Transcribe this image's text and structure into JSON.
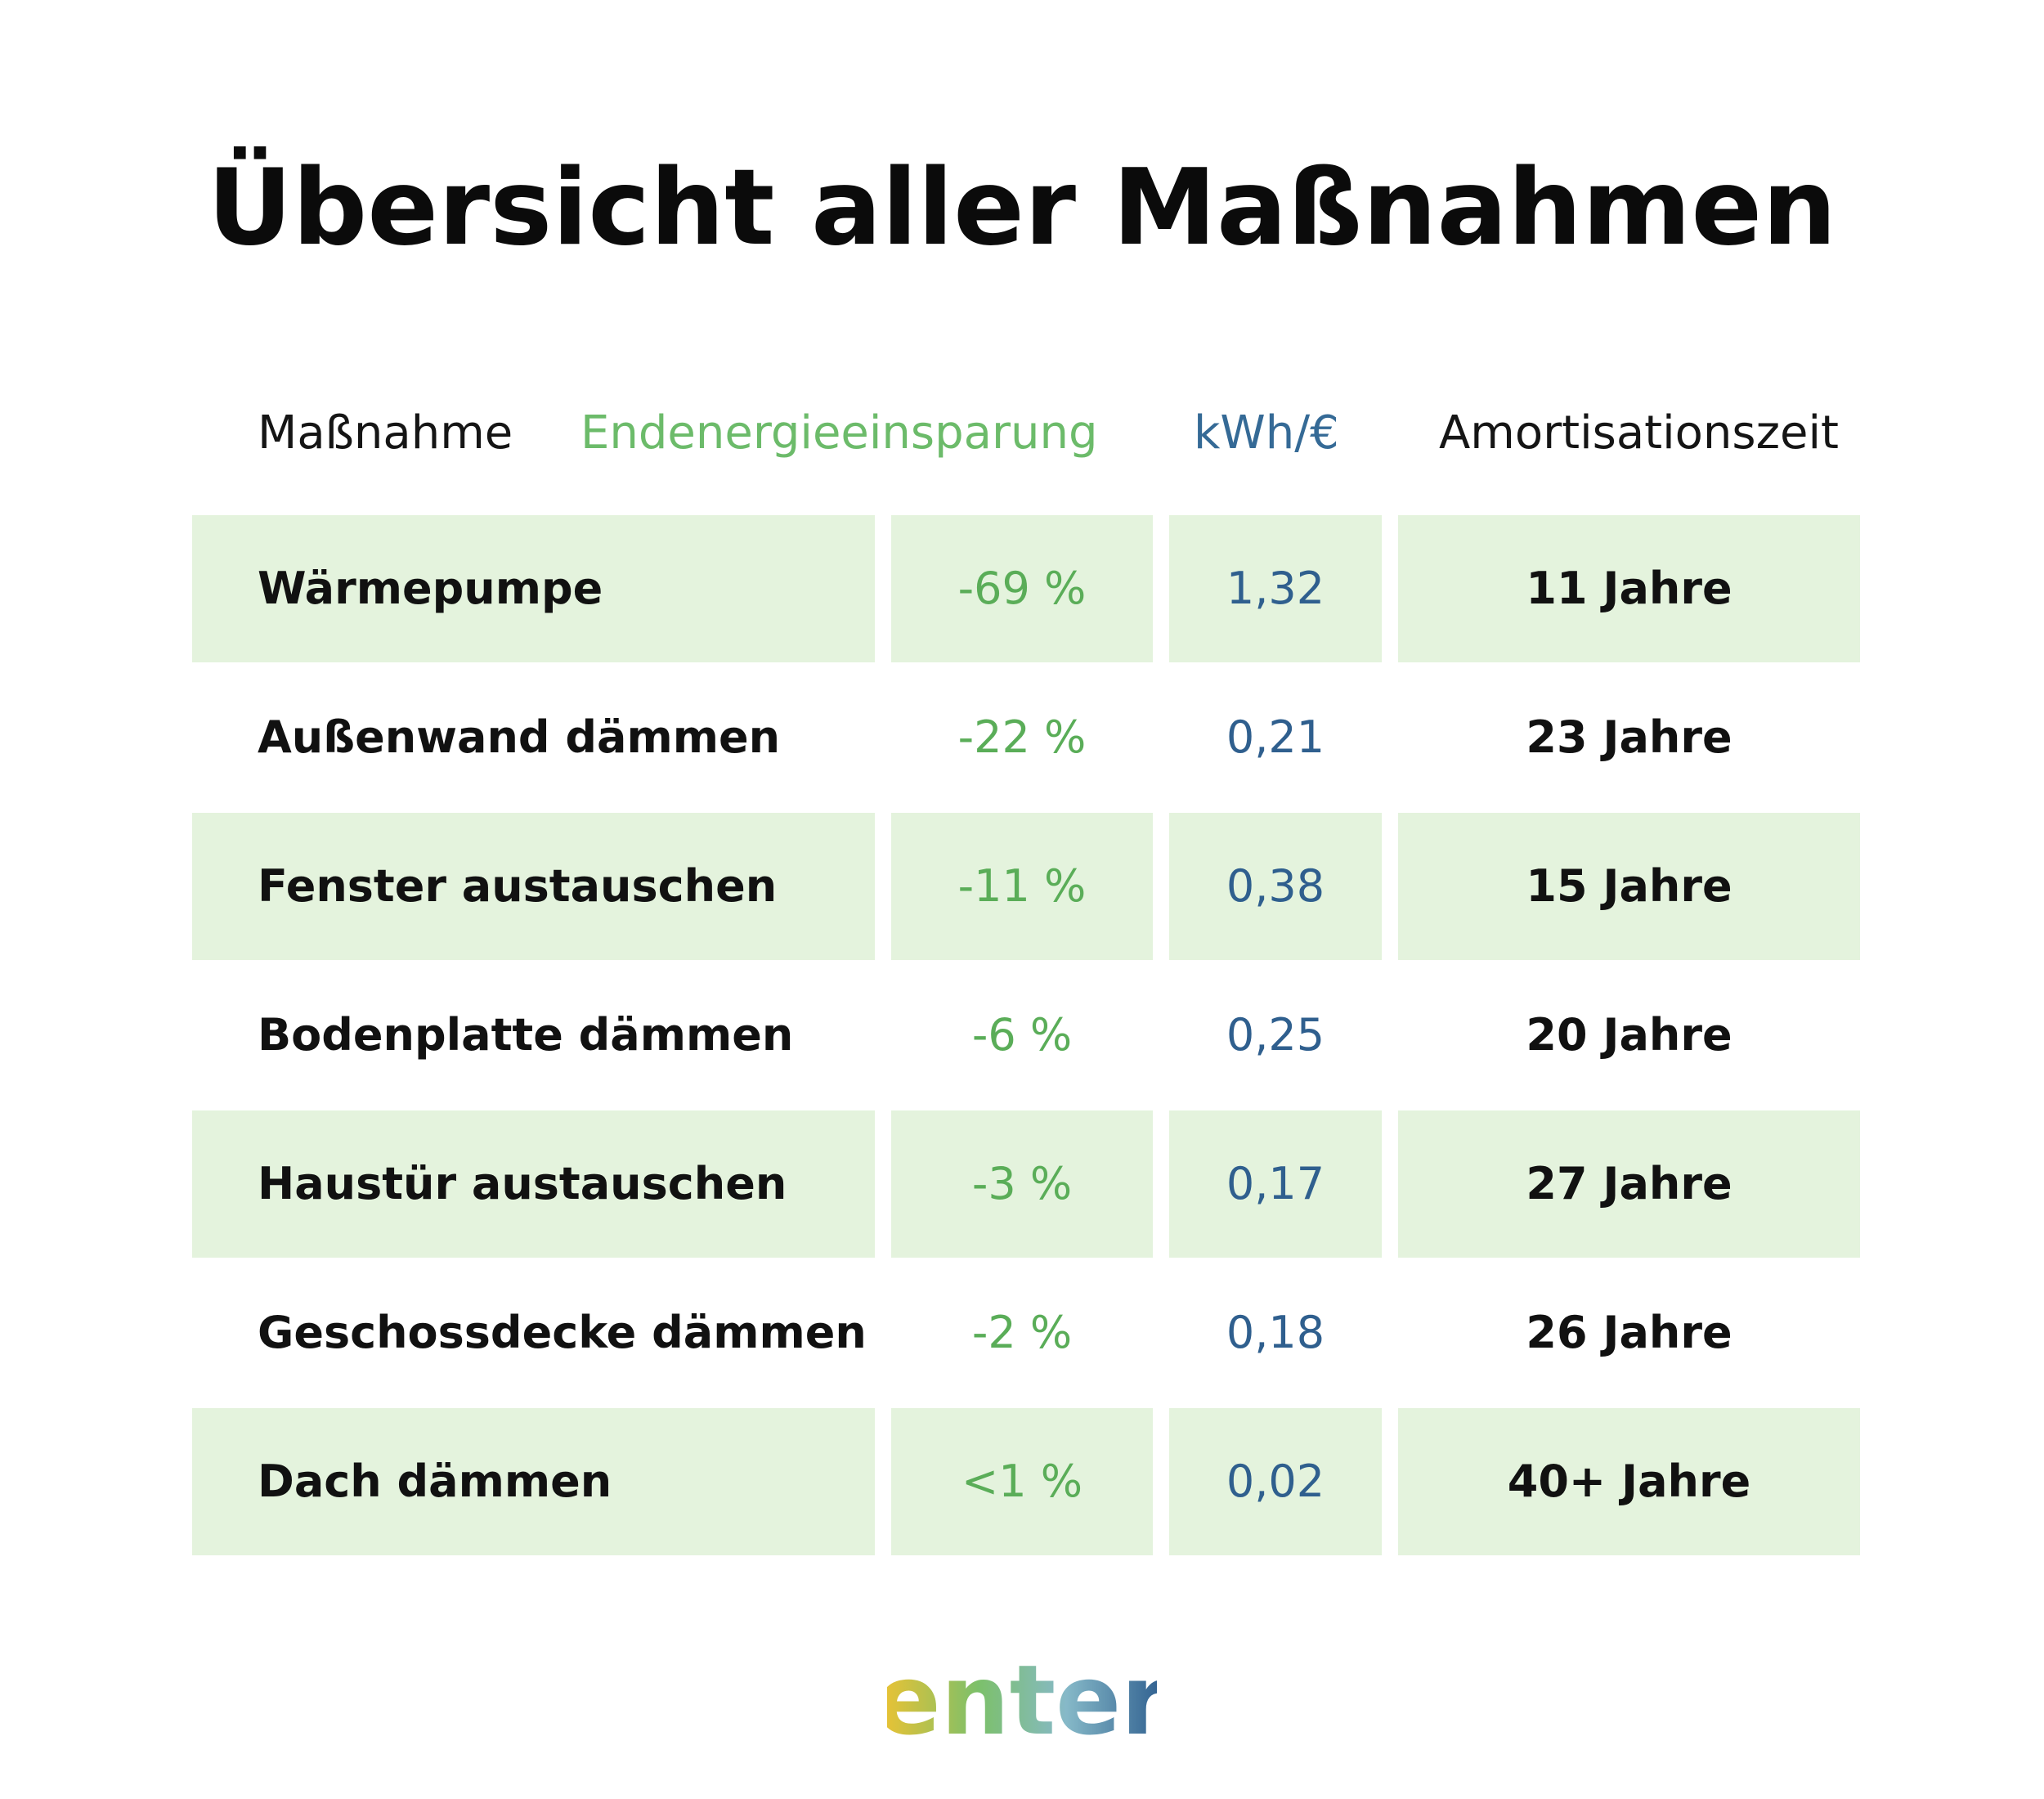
{
  "title": "Übersicht aller Maßnahmen",
  "chart_data": {
    "type": "table",
    "title": "Übersicht aller Maßnahmen",
    "columns": [
      "Maßnahme",
      "Endenergieeinsparung",
      "kWh/€",
      "Amortisationszeit"
    ],
    "rows": [
      {
        "name": "Wärmepumpe",
        "saving": "-69 %",
        "kwh": "1,32",
        "amort": "11 Jahre"
      },
      {
        "name": "Außenwand dämmen",
        "saving": "-22 %",
        "kwh": "0,21",
        "amort": "23 Jahre"
      },
      {
        "name": "Fenster austauschen",
        "saving": "-11 %",
        "kwh": "0,38",
        "amort": "15 Jahre"
      },
      {
        "name": "Bodenplatte dämmen",
        "saving": "-6 %",
        "kwh": "0,25",
        "amort": "20 Jahre"
      },
      {
        "name": "Haustür austauschen",
        "saving": "-3 %",
        "kwh": "0,17",
        "amort": "27 Jahre"
      },
      {
        "name": "Geschossdecke dämmen",
        "saving": "-2 %",
        "kwh": "0,18",
        "amort": "26 Jahre"
      },
      {
        "name": "Dach dämmen",
        "saving": "<1 %",
        "kwh": "0,02",
        "amort": "40+ Jahre"
      }
    ]
  },
  "colors": {
    "saving_text": "#5aad58",
    "kwh_text": "#2f5f8e",
    "row_shade": "#e4f3dd",
    "logo_gradient": [
      "#f2c230",
      "#7cc06a",
      "#86b9c8",
      "#2a5a8c"
    ]
  },
  "logo": {
    "text": "enter",
    "icon": "enter-wordmark-logo"
  }
}
